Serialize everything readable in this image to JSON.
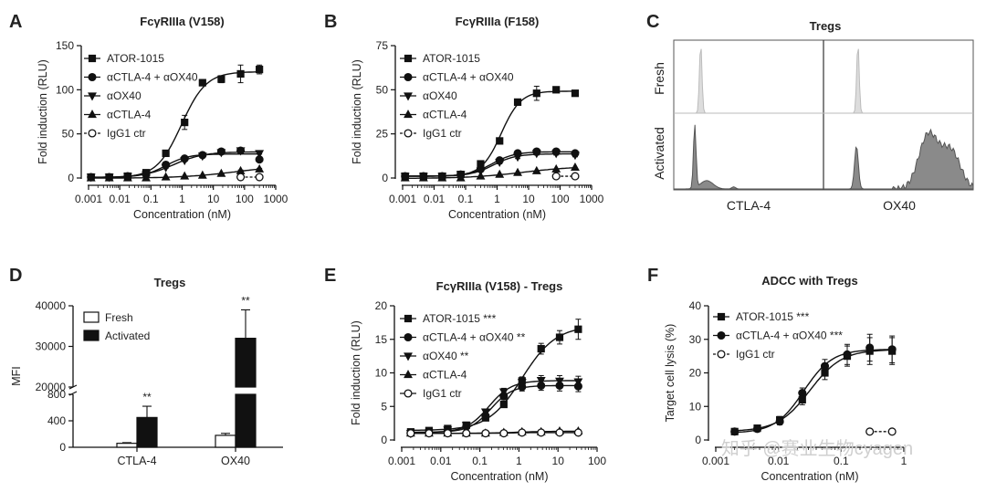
{
  "watermark": "知乎 @赛业生物cyagen",
  "panels": {
    "A": {
      "letter": "A",
      "title": "FcγRIIIa (V158)",
      "ylabel": "Fold induction (RLU)",
      "xlabel": "Concentration (nM)"
    },
    "B": {
      "letter": "B",
      "title": "FcγRIIIa (F158)",
      "ylabel": "Fold induction (RLU)",
      "xlabel": "Concentration (nM)"
    },
    "C": {
      "letter": "C",
      "title": "Tregs",
      "row_labels": [
        "Fresh",
        "Activated"
      ],
      "col_labels": [
        "CTLA-4",
        "OX40"
      ]
    },
    "D": {
      "letter": "D",
      "title": "Tregs",
      "ylabel": "MFI"
    },
    "E": {
      "letter": "E",
      "title": "FcγRIIIa (V158) - Tregs",
      "ylabel": "Fold induction (RLU)",
      "xlabel": "Concentration (nM)"
    },
    "F": {
      "letter": "F",
      "title": "ADCC with Tregs",
      "ylabel": "Target cell lysis (%)",
      "xlabel": "Concentration (nM)"
    }
  },
  "chart_data": [
    {
      "id": "A",
      "type": "line",
      "title": "FcγRIIIa (V158)",
      "xlabel": "Concentration (nM)",
      "ylabel": "Fold induction (RLU)",
      "xscale": "log",
      "xlim": [
        0.001,
        1000
      ],
      "ylim": [
        0,
        150
      ],
      "xticks": [
        "0.001",
        "0.01",
        "0.1",
        "1",
        "10",
        "100",
        "1000"
      ],
      "yticks": [
        "0",
        "50",
        "100",
        "150"
      ],
      "legend_position": "top-left",
      "series": [
        {
          "name": "ATOR-1015",
          "marker": "square",
          "fill": true,
          "x": [
            0.0012,
            0.0046,
            0.018,
            0.07,
            0.3,
            1.2,
            4.5,
            18,
            75,
            300
          ],
          "y": [
            1,
            1,
            2,
            6,
            28,
            63,
            108,
            112,
            118,
            123
          ],
          "err": [
            0,
            0,
            0,
            1,
            2,
            8,
            2,
            4,
            10,
            5
          ]
        },
        {
          "name": "αCTLA-4 + αOX40",
          "marker": "circle",
          "fill": true,
          "x": [
            0.0012,
            0.0046,
            0.018,
            0.07,
            0.3,
            1.2,
            4.5,
            18,
            75,
            300
          ],
          "y": [
            1,
            1,
            2,
            4,
            15,
            22,
            26,
            30,
            31,
            21
          ],
          "err": [
            0,
            0,
            0,
            0,
            1,
            1,
            1,
            2,
            2,
            1
          ]
        },
        {
          "name": "αOX40",
          "marker": "triangle-down",
          "fill": true,
          "x": [
            0.0012,
            0.0046,
            0.018,
            0.07,
            0.3,
            1.2,
            4.5,
            18,
            75,
            300
          ],
          "y": [
            1,
            1,
            2,
            4,
            12,
            20,
            25,
            29,
            31,
            28
          ],
          "err": [
            0,
            0,
            0,
            0,
            1,
            1,
            1,
            1,
            1,
            1
          ]
        },
        {
          "name": "αCTLA-4",
          "marker": "triangle-up",
          "fill": true,
          "x": [
            0.0012,
            0.0046,
            0.018,
            0.07,
            0.3,
            1.2,
            4.5,
            18,
            75,
            300
          ],
          "y": [
            0,
            0,
            0,
            0,
            1,
            2,
            3,
            5,
            8,
            10
          ],
          "err": [
            0,
            0,
            0,
            0,
            0,
            0,
            0,
            0,
            1,
            1
          ]
        },
        {
          "name": "IgG1 ctr",
          "marker": "circle",
          "fill": false,
          "dashed": true,
          "x": [
            75,
            300
          ],
          "y": [
            1,
            1
          ],
          "err": [
            0,
            0
          ]
        }
      ]
    },
    {
      "id": "B",
      "type": "line",
      "title": "FcγRIIIa (F158)",
      "xlabel": "Concentration (nM)",
      "ylabel": "Fold induction (RLU)",
      "xscale": "log",
      "xlim": [
        0.001,
        1000
      ],
      "ylim": [
        0,
        75
      ],
      "xticks": [
        "0.001",
        "0.01",
        "0.1",
        "1",
        "10",
        "100",
        "1000"
      ],
      "yticks": [
        "0",
        "25",
        "50",
        "75"
      ],
      "legend_position": "top-left",
      "series": [
        {
          "name": "ATOR-1015",
          "marker": "square",
          "fill": true,
          "x": [
            0.0012,
            0.0046,
            0.018,
            0.07,
            0.3,
            1.2,
            4.5,
            18,
            75,
            300
          ],
          "y": [
            1,
            1,
            1,
            2,
            8,
            21,
            43,
            48,
            50,
            48
          ],
          "err": [
            0,
            0,
            0,
            0,
            1,
            1,
            1,
            4,
            1,
            1
          ]
        },
        {
          "name": "αCTLA-4 + αOX40",
          "marker": "circle",
          "fill": true,
          "x": [
            0.0012,
            0.0046,
            0.018,
            0.07,
            0.3,
            1.2,
            4.5,
            18,
            75,
            300
          ],
          "y": [
            1,
            1,
            1,
            2,
            5,
            10,
            14,
            15,
            15,
            14
          ],
          "err": [
            0,
            0,
            0,
            0,
            0,
            1,
            1,
            1,
            1,
            1
          ]
        },
        {
          "name": "αOX40",
          "marker": "triangle-down",
          "fill": true,
          "x": [
            0.0012,
            0.0046,
            0.018,
            0.07,
            0.3,
            1.2,
            4.5,
            18,
            75,
            300
          ],
          "y": [
            1,
            1,
            1,
            2,
            4,
            9,
            12,
            14,
            14,
            13
          ],
          "err": [
            0,
            0,
            0,
            0,
            0,
            1,
            1,
            1,
            1,
            1
          ]
        },
        {
          "name": "αCTLA-4",
          "marker": "triangle-up",
          "fill": true,
          "x": [
            0.0012,
            0.0046,
            0.018,
            0.07,
            0.3,
            1.2,
            4.5,
            18,
            75,
            300
          ],
          "y": [
            0,
            0,
            0,
            0,
            1,
            2,
            3,
            4,
            5,
            6
          ],
          "err": [
            0,
            0,
            0,
            0,
            0,
            0,
            0,
            0,
            0,
            0
          ]
        },
        {
          "name": "IgG1 ctr",
          "marker": "circle",
          "fill": false,
          "dashed": true,
          "x": [
            75,
            300
          ],
          "y": [
            1,
            1
          ],
          "err": [
            0,
            0
          ]
        }
      ]
    },
    {
      "id": "C",
      "type": "histogram",
      "title": "Tregs",
      "rows": [
        "Fresh",
        "Activated"
      ],
      "columns": [
        "CTLA-4",
        "OX40"
      ],
      "profiles": {
        "fresh_ctla4": [
          [
            0.18,
            1.0
          ]
        ],
        "activated_ctla4": [
          [
            0.14,
            0.92
          ],
          [
            0.4,
            0.03
          ]
        ],
        "fresh_ox40": [
          [
            0.23,
            1.0
          ]
        ],
        "activated_ox40": [
          [
            0.22,
            0.62
          ],
          [
            0.7,
            0.78
          ],
          [
            0.85,
            0.55
          ]
        ]
      }
    },
    {
      "id": "D",
      "type": "bar",
      "title": "Tregs",
      "ylabel": "MFI",
      "categories": [
        "CTLA-4",
        "OX40"
      ],
      "series": [
        {
          "name": "Fresh",
          "values": [
            60,
            180
          ],
          "err": [
            10,
            30
          ],
          "fill": "#ffffff"
        },
        {
          "name": "Activated",
          "values": [
            450,
            32000
          ],
          "err": [
            170,
            7000
          ],
          "fill": "#111111"
        }
      ],
      "broken_axis": {
        "lower": [
          0,
          800
        ],
        "upper": [
          20000,
          40000
        ]
      },
      "yticks_lower": [
        "0",
        "400",
        "800"
      ],
      "yticks_upper": [
        "20000",
        "30000",
        "40000"
      ],
      "significance": [
        {
          "category": "CTLA-4",
          "label": "**"
        },
        {
          "category": "OX40",
          "label": "**"
        }
      ],
      "legend_position": "top-left"
    },
    {
      "id": "E",
      "type": "line",
      "title": "FcγRIIIa (V158) - Tregs",
      "xlabel": "Concentration (nM)",
      "ylabel": "Fold induction (RLU)",
      "xscale": "log",
      "xlim": [
        0.001,
        100
      ],
      "ylim": [
        0,
        20
      ],
      "xticks": [
        "0.001",
        "0.01",
        "0.1",
        "1",
        "10",
        "100"
      ],
      "yticks": [
        "0",
        "5",
        "10",
        "15",
        "20"
      ],
      "legend_position": "top-left",
      "series": [
        {
          "name": "ATOR-1015 ***",
          "marker": "square",
          "fill": true,
          "x": [
            0.0017,
            0.005,
            0.015,
            0.045,
            0.14,
            0.41,
            1.2,
            3.7,
            11,
            33
          ],
          "y": [
            1.2,
            1.4,
            1.7,
            2.2,
            3.3,
            5.3,
            8.8,
            13.6,
            15.3,
            16.5
          ],
          "err": [
            0,
            0.1,
            0.1,
            0.2,
            0.3,
            0.4,
            0.6,
            0.8,
            1.0,
            1.5
          ]
        },
        {
          "name": "αCTLA-4 + αOX40 **",
          "marker": "circle",
          "fill": true,
          "x": [
            0.0017,
            0.005,
            0.015,
            0.045,
            0.14,
            0.41,
            1.2,
            3.7,
            11,
            33
          ],
          "y": [
            1.0,
            1.1,
            1.4,
            2.0,
            3.6,
            6.5,
            7.9,
            8.1,
            8.1,
            8.0
          ],
          "err": [
            0,
            0,
            0.1,
            0.2,
            0.3,
            0.5,
            0.6,
            0.7,
            0.8,
            0.8
          ]
        },
        {
          "name": "αOX40 **",
          "marker": "triangle-down",
          "fill": true,
          "x": [
            0.0017,
            0.005,
            0.015,
            0.045,
            0.14,
            0.41,
            1.2,
            3.7,
            11,
            33
          ],
          "y": [
            1.0,
            1.1,
            1.5,
            2.2,
            4.2,
            7.2,
            8.6,
            8.9,
            8.8,
            8.7
          ],
          "err": [
            0,
            0,
            0.1,
            0.2,
            0.3,
            0.5,
            0.6,
            0.7,
            0.8,
            0.8
          ]
        },
        {
          "name": "αCTLA-4",
          "marker": "triangle-up",
          "fill": true,
          "x": [
            0.0017,
            0.005,
            0.015,
            0.045,
            0.14,
            0.41,
            1.2,
            3.7,
            11,
            33
          ],
          "y": [
            1.0,
            1.0,
            1.0,
            1.0,
            1.0,
            1.1,
            1.2,
            1.2,
            1.3,
            1.3
          ],
          "err": [
            0,
            0,
            0,
            0,
            0,
            0,
            0,
            0,
            0,
            0
          ]
        },
        {
          "name": "IgG1 ctr",
          "marker": "circle",
          "fill": false,
          "x": [
            0.0017,
            0.005,
            0.015,
            0.045,
            0.14,
            0.41,
            1.2,
            3.7,
            11,
            33
          ],
          "y": [
            1.0,
            1.0,
            1.0,
            1.0,
            1.0,
            1.0,
            1.1,
            1.1,
            1.1,
            1.1
          ],
          "err": [
            0,
            0,
            0,
            0,
            0,
            0,
            0,
            0,
            0,
            0
          ]
        }
      ]
    },
    {
      "id": "F",
      "type": "line",
      "title": "ADCC with Tregs",
      "xlabel": "Concentration (nM)",
      "ylabel": "Target cell lysis (%)",
      "xscale": "log",
      "xlim": [
        0.001,
        1
      ],
      "ylim": [
        0,
        40
      ],
      "xticks": [
        "0.001",
        "0.01",
        "0.1",
        "1"
      ],
      "yticks": [
        "0",
        "10",
        "20",
        "30",
        "40"
      ],
      "legend_position": "top-left",
      "series": [
        {
          "name": "ATOR-1015 ***",
          "marker": "square",
          "fill": true,
          "x": [
            0.002,
            0.0046,
            0.0105,
            0.024,
            0.055,
            0.125,
            0.286,
            0.65
          ],
          "y": [
            2.5,
            3.5,
            6,
            12,
            20,
            25,
            26.5,
            26.5
          ],
          "err": [
            0.5,
            0.6,
            1,
            1.5,
            2,
            3,
            4,
            4
          ]
        },
        {
          "name": "αCTLA-4 + αOX40 ***",
          "marker": "circle",
          "fill": true,
          "x": [
            0.002,
            0.0046,
            0.0105,
            0.024,
            0.055,
            0.125,
            0.286,
            0.65
          ],
          "y": [
            2.5,
            3.3,
            5.5,
            14,
            22,
            25.5,
            27.5,
            27
          ],
          "err": [
            0.5,
            0.6,
            1,
            1.5,
            2,
            3,
            4,
            4
          ]
        },
        {
          "name": "IgG1 ctr",
          "marker": "circle",
          "fill": false,
          "dashed": true,
          "x": [
            0.286,
            0.65
          ],
          "y": [
            2.5,
            2.5
          ],
          "err": [
            0,
            0
          ]
        }
      ]
    }
  ]
}
